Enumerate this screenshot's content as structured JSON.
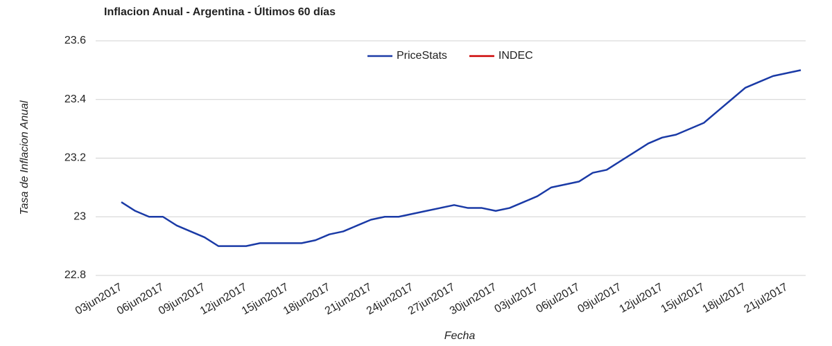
{
  "chart_data": {
    "type": "line",
    "title": "Inflacion Anual - Argentina - Últimos 60 días",
    "x_label": "Fecha",
    "y_label": "Tasa de Inflacion Anual",
    "categories": [
      "03jun2017",
      null,
      null,
      "06jun2017",
      null,
      null,
      "09jun2017",
      null,
      null,
      "12jun2017",
      null,
      null,
      "15jun2017",
      null,
      null,
      "18jun2017",
      null,
      null,
      "21jun2017",
      null,
      null,
      "24jun2017",
      null,
      null,
      "27jun2017",
      null,
      null,
      "30jun2017",
      null,
      null,
      "03jul2017",
      null,
      null,
      "06jul2017",
      null,
      null,
      "09jul2017",
      null,
      null,
      "12jul2017",
      null,
      null,
      "15jul2017",
      null,
      null,
      "18jul2017",
      null,
      null,
      "21jul2017",
      null
    ],
    "series": [
      {
        "name": "PriceStats",
        "color": "#1a3aa6",
        "values": [
          23.05,
          23.02,
          23.0,
          23.0,
          22.97,
          22.95,
          22.93,
          22.9,
          22.9,
          22.9,
          22.91,
          22.91,
          22.91,
          22.91,
          22.92,
          22.94,
          22.95,
          22.97,
          22.99,
          23.0,
          23.0,
          23.01,
          23.02,
          23.03,
          23.04,
          23.03,
          23.03,
          23.02,
          23.03,
          23.05,
          23.07,
          23.1,
          23.11,
          23.12,
          23.15,
          23.16,
          23.19,
          23.22,
          23.25,
          23.27,
          23.28,
          23.3,
          23.32,
          23.36,
          23.4,
          23.44,
          23.46,
          23.48,
          23.49,
          23.5
        ]
      },
      {
        "name": "INDEC",
        "color": "#cc0000",
        "values": [
          null,
          null,
          null,
          null,
          null,
          null,
          null,
          null,
          null,
          null,
          null,
          null,
          null,
          null,
          null,
          null,
          null,
          null,
          null,
          null,
          null,
          null,
          null,
          null,
          null,
          null,
          null,
          null,
          null,
          null,
          null,
          null,
          null,
          null,
          null,
          null,
          null,
          null,
          null,
          null,
          null,
          null,
          null,
          null,
          null,
          null,
          null,
          null,
          null,
          null
        ]
      }
    ],
    "ylim": [
      22.8,
      23.6
    ],
    "yticks": [
      22.8,
      23,
      23.2,
      23.4,
      23.6
    ],
    "grid": true,
    "legend": "top"
  }
}
